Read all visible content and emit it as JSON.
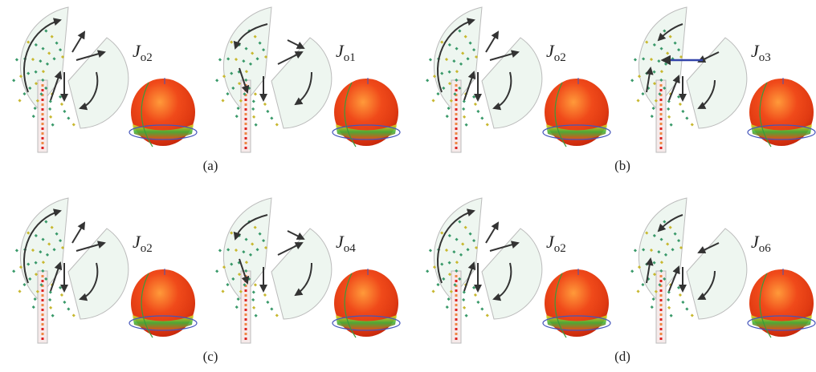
{
  "panels": [
    {
      "symbol": "J",
      "subscript": "o2"
    },
    {
      "symbol": "J",
      "subscript": "o1"
    },
    {
      "symbol": "J",
      "subscript": "o2"
    },
    {
      "symbol": "J",
      "subscript": "o3"
    },
    {
      "symbol": "J",
      "subscript": "o2"
    },
    {
      "symbol": "J",
      "subscript": "o4"
    },
    {
      "symbol": "J",
      "subscript": "o2"
    },
    {
      "symbol": "J",
      "subscript": "o6"
    }
  ],
  "captions": [
    "(a)",
    "(b)",
    "(c)",
    "(d)"
  ]
}
